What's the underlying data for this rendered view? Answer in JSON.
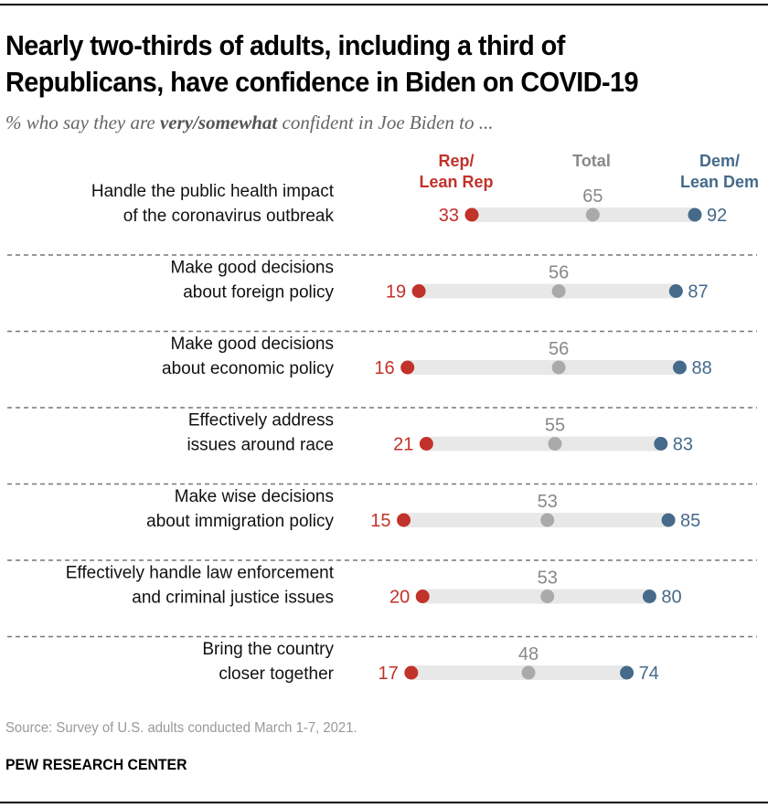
{
  "title": "Nearly two-thirds of adults, including a third of Republicans, have confidence in Biden on COVID-19",
  "subtitle": {
    "prefix": "% who say they are ",
    "emphasis": "very/somewhat",
    "suffix": " confident in Joe Biden to ..."
  },
  "source": "Source: Survey of U.S. adults conducted March 1-7, 2021.",
  "brand": "PEW RESEARCH CENTER",
  "colors": {
    "rep": "#c1322a",
    "total": "#aaaaaa",
    "dem": "#466a8a",
    "bar": "#e8e8e8",
    "total_label": "#888888"
  },
  "chart_data": {
    "type": "dot-range",
    "title": "Nearly two-thirds of adults, including a third of Republicans, have confidence in Biden on COVID-19",
    "legend": [
      {
        "key": "rep",
        "label_lines": [
          "Rep/",
          "Lean Rep"
        ]
      },
      {
        "key": "total",
        "label_lines": [
          "Total"
        ]
      },
      {
        "key": "dem",
        "label_lines": [
          "Dem/",
          "Lean Dem"
        ]
      }
    ],
    "categories": [
      [
        "Handle the public health impact",
        "of the coronavirus outbreak"
      ],
      [
        "Make good decisions",
        "about foreign policy"
      ],
      [
        "Make good decisions",
        "about economic policy"
      ],
      [
        "Effectively address",
        "issues around race"
      ],
      [
        "Make wise decisions",
        "about immigration policy"
      ],
      [
        "Effectively handle law enforcement",
        "and criminal justice issues"
      ],
      [
        "Bring the country",
        "closer together"
      ]
    ],
    "series": [
      {
        "name": "Rep/Lean Rep",
        "key": "rep",
        "values": [
          33,
          19,
          16,
          21,
          15,
          20,
          17
        ]
      },
      {
        "name": "Total",
        "key": "total",
        "values": [
          65,
          56,
          56,
          55,
          53,
          53,
          48
        ]
      },
      {
        "name": "Dem/Lean Dem",
        "key": "dem",
        "values": [
          92,
          87,
          88,
          83,
          85,
          80,
          74
        ]
      }
    ],
    "unit": "%"
  }
}
